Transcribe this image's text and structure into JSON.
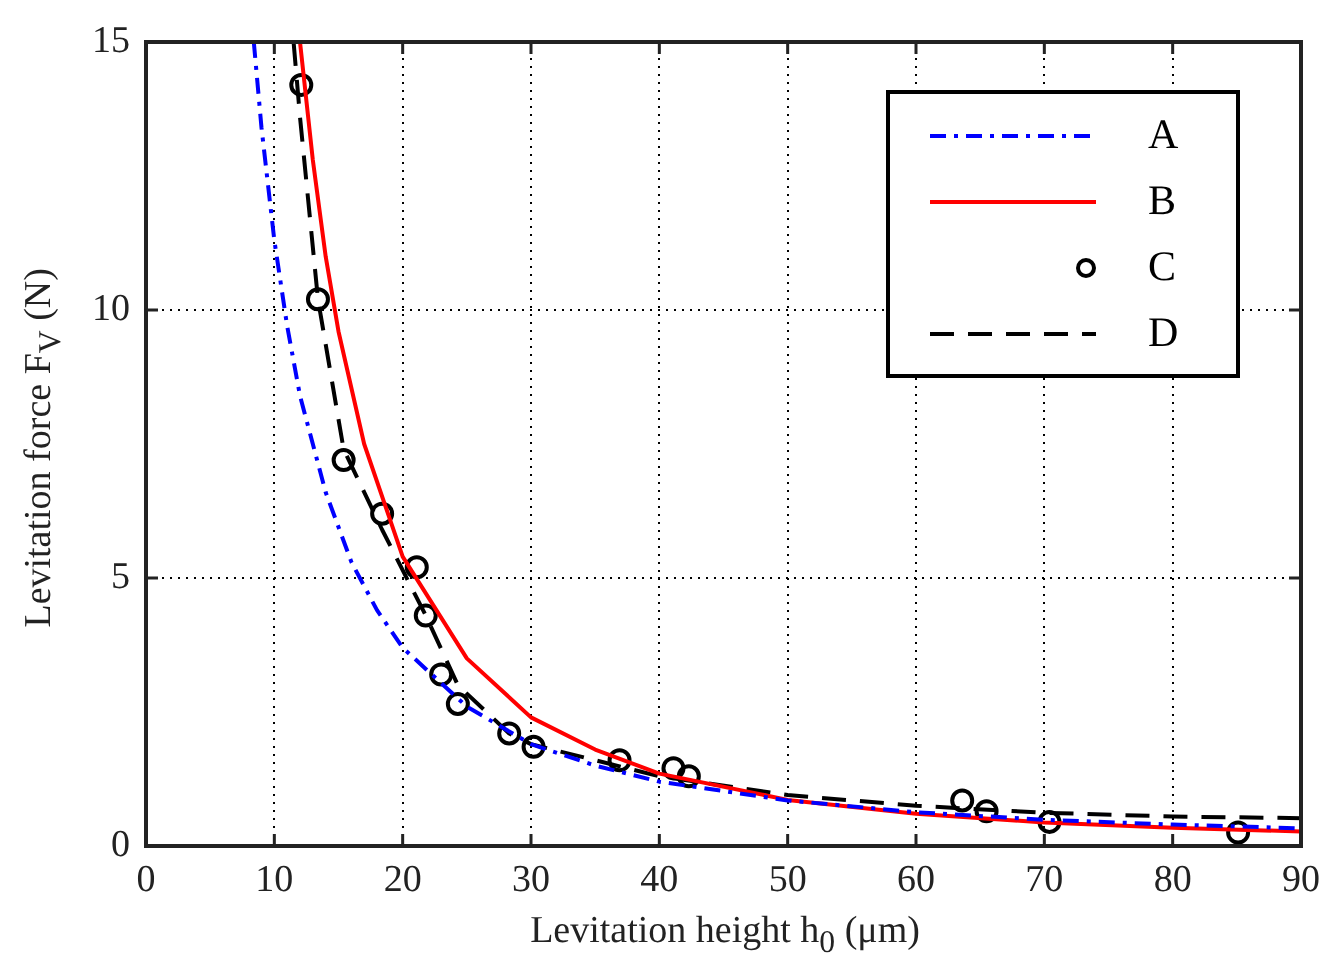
{
  "chart_data": {
    "type": "line",
    "xlabel": "Levitation height h$_{0}$ (μm)",
    "ylabel": "Levitation force F$_{V}$ (N)",
    "xlim": [
      0,
      90
    ],
    "xticks": [
      0,
      10,
      20,
      30,
      40,
      50,
      60,
      70,
      80,
      90
    ],
    "ylim": [
      0,
      15
    ],
    "yticks": [
      0,
      5,
      10,
      15
    ],
    "grid": true,
    "legend": "top right",
    "series": [
      {
        "name": "A",
        "color": "#0000ff",
        "line_style": "dashdot",
        "marker": "none",
        "x": [
          8.4,
          9,
          10,
          11,
          12,
          14,
          16,
          18,
          20,
          25,
          30,
          35,
          40,
          50,
          60,
          70,
          80,
          90
        ],
        "values": [
          15,
          13.4,
          11.3,
          9.7,
          8.4,
          6.6,
          5.3,
          4.4,
          3.7,
          2.6,
          1.9,
          1.5,
          1.2,
          0.85,
          0.63,
          0.49,
          0.4,
          0.33
        ]
      },
      {
        "name": "B",
        "color": "#ff0000",
        "line_style": "solid",
        "marker": "none",
        "x": [
          12,
          13,
          14,
          15,
          17,
          20,
          25,
          30,
          35,
          40,
          50,
          60,
          70,
          80,
          90
        ],
        "values": [
          15,
          12.8,
          11,
          9.6,
          7.5,
          5.4,
          3.5,
          2.4,
          1.8,
          1.35,
          0.86,
          0.6,
          0.44,
          0.34,
          0.27
        ]
      },
      {
        "name": "C",
        "type": "scatter",
        "color": "#000000",
        "marker": "circle",
        "x": [
          12.1,
          13.4,
          15.4,
          18.4,
          21.1,
          21.8,
          23,
          24.3,
          28.3,
          30.2,
          36.9,
          41.1,
          42.3,
          63.6,
          65.5,
          70.4,
          85.1
        ],
        "values": [
          14.2,
          10.2,
          7.2,
          6.2,
          5.2,
          4.3,
          3.2,
          2.65,
          2.1,
          1.85,
          1.6,
          1.45,
          1.3,
          0.85,
          0.65,
          0.45,
          0.25
        ]
      },
      {
        "name": "D",
        "color": "#000000",
        "line_style": "dashed",
        "marker": "none",
        "x": [
          11.5,
          12,
          13.4,
          15.4,
          18.4,
          21.8,
          24.3,
          28.3,
          30,
          40,
          50,
          60,
          70,
          80,
          90
        ],
        "values": [
          15,
          13.6,
          10.2,
          7.4,
          5.9,
          4.3,
          3,
          2.1,
          1.9,
          1.3,
          0.95,
          0.75,
          0.62,
          0.55,
          0.52
        ]
      }
    ]
  }
}
